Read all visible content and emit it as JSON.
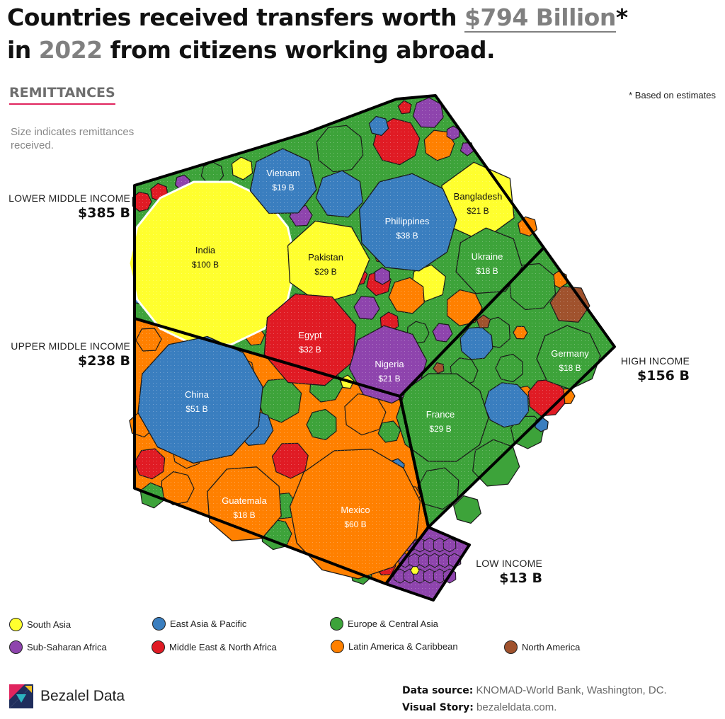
{
  "header": {
    "title_line1_pre": "Countries received transfers worth ",
    "title_highlight_amount": "$794 Billion",
    "title_asterisk": "*",
    "title_line2_pre": "in ",
    "title_highlight_year": "2022",
    "title_line2_post": " from citizens working abroad.",
    "section_label": "REMITTANCES",
    "subtitle": "Size indicates remittances received.",
    "note": "* Based on estimates"
  },
  "colors": {
    "South Asia": "#ffff2e",
    "East Asia & Pacific": "#3a7ebf",
    "Europe & Central Asia": "#3da33a",
    "Sub-Saharan Africa": "#8e44ad",
    "Middle East & North Africa": "#e01b24",
    "Latin America & Caribbean": "#ff8000",
    "North America": "#a0522d"
  },
  "chart_data": {
    "type": "voronoi-treemap",
    "unit": "B",
    "total": "$794 Billion",
    "groups": [
      {
        "name": "LOWER MIDDLE INCOME",
        "value_label": "$385 B"
      },
      {
        "name": "UPPER MIDDLE INCOME",
        "value_label": "$238 B"
      },
      {
        "name": "HIGH INCOME",
        "value_label": "$156 B"
      },
      {
        "name": "LOW INCOME",
        "value_label": "$13 B"
      }
    ],
    "countries": [
      {
        "name": "India",
        "label": "$100 B",
        "value": 100,
        "region": "South Asia",
        "group": "LOWER MIDDLE INCOME"
      },
      {
        "name": "Vietnam",
        "label": "$19 B",
        "value": 19,
        "region": "East Asia & Pacific",
        "group": "LOWER MIDDLE INCOME"
      },
      {
        "name": "Bangladesh",
        "label": "$21 B",
        "value": 21,
        "region": "South Asia",
        "group": "LOWER MIDDLE INCOME"
      },
      {
        "name": "Philippines",
        "label": "$38 B",
        "value": 38,
        "region": "East Asia & Pacific",
        "group": "LOWER MIDDLE INCOME"
      },
      {
        "name": "Pakistan",
        "label": "$29 B",
        "value": 29,
        "region": "South Asia",
        "group": "LOWER MIDDLE INCOME"
      },
      {
        "name": "Ukraine",
        "label": "$18 B",
        "value": 18,
        "region": "Europe & Central Asia",
        "group": "LOWER MIDDLE INCOME"
      },
      {
        "name": "Egypt",
        "label": "$32 B",
        "value": 32,
        "region": "Middle East & North Africa",
        "group": "LOWER MIDDLE INCOME"
      },
      {
        "name": "Nigeria",
        "label": "$21 B",
        "value": 21,
        "region": "Sub-Saharan Africa",
        "group": "LOWER MIDDLE INCOME"
      },
      {
        "name": "China",
        "label": "$51 B",
        "value": 51,
        "region": "East Asia & Pacific",
        "group": "UPPER MIDDLE INCOME"
      },
      {
        "name": "Guatemala",
        "label": "$18 B",
        "value": 18,
        "region": "Latin America & Caribbean",
        "group": "UPPER MIDDLE INCOME"
      },
      {
        "name": "Mexico",
        "label": "$60 B",
        "value": 60,
        "region": "Latin America & Caribbean",
        "group": "UPPER MIDDLE INCOME"
      },
      {
        "name": "Germany",
        "label": "$18 B",
        "value": 18,
        "region": "Europe & Central Asia",
        "group": "HIGH INCOME"
      },
      {
        "name": "France",
        "label": "$29 B",
        "value": 29,
        "region": "Europe & Central Asia",
        "group": "HIGH INCOME"
      }
    ],
    "legend": [
      "South Asia",
      "East Asia & Pacific",
      "Europe & Central Asia",
      "Sub-Saharan Africa",
      "Middle East & North Africa",
      "Latin America & Caribbean",
      "North America"
    ]
  },
  "footer": {
    "brand": "Bezalel Data",
    "source_label": "Data source:",
    "source_value": "KNOMAD-World Bank, Washington, DC.",
    "story_label": "Visual Story:",
    "story_value": "bezaleldata.com."
  }
}
